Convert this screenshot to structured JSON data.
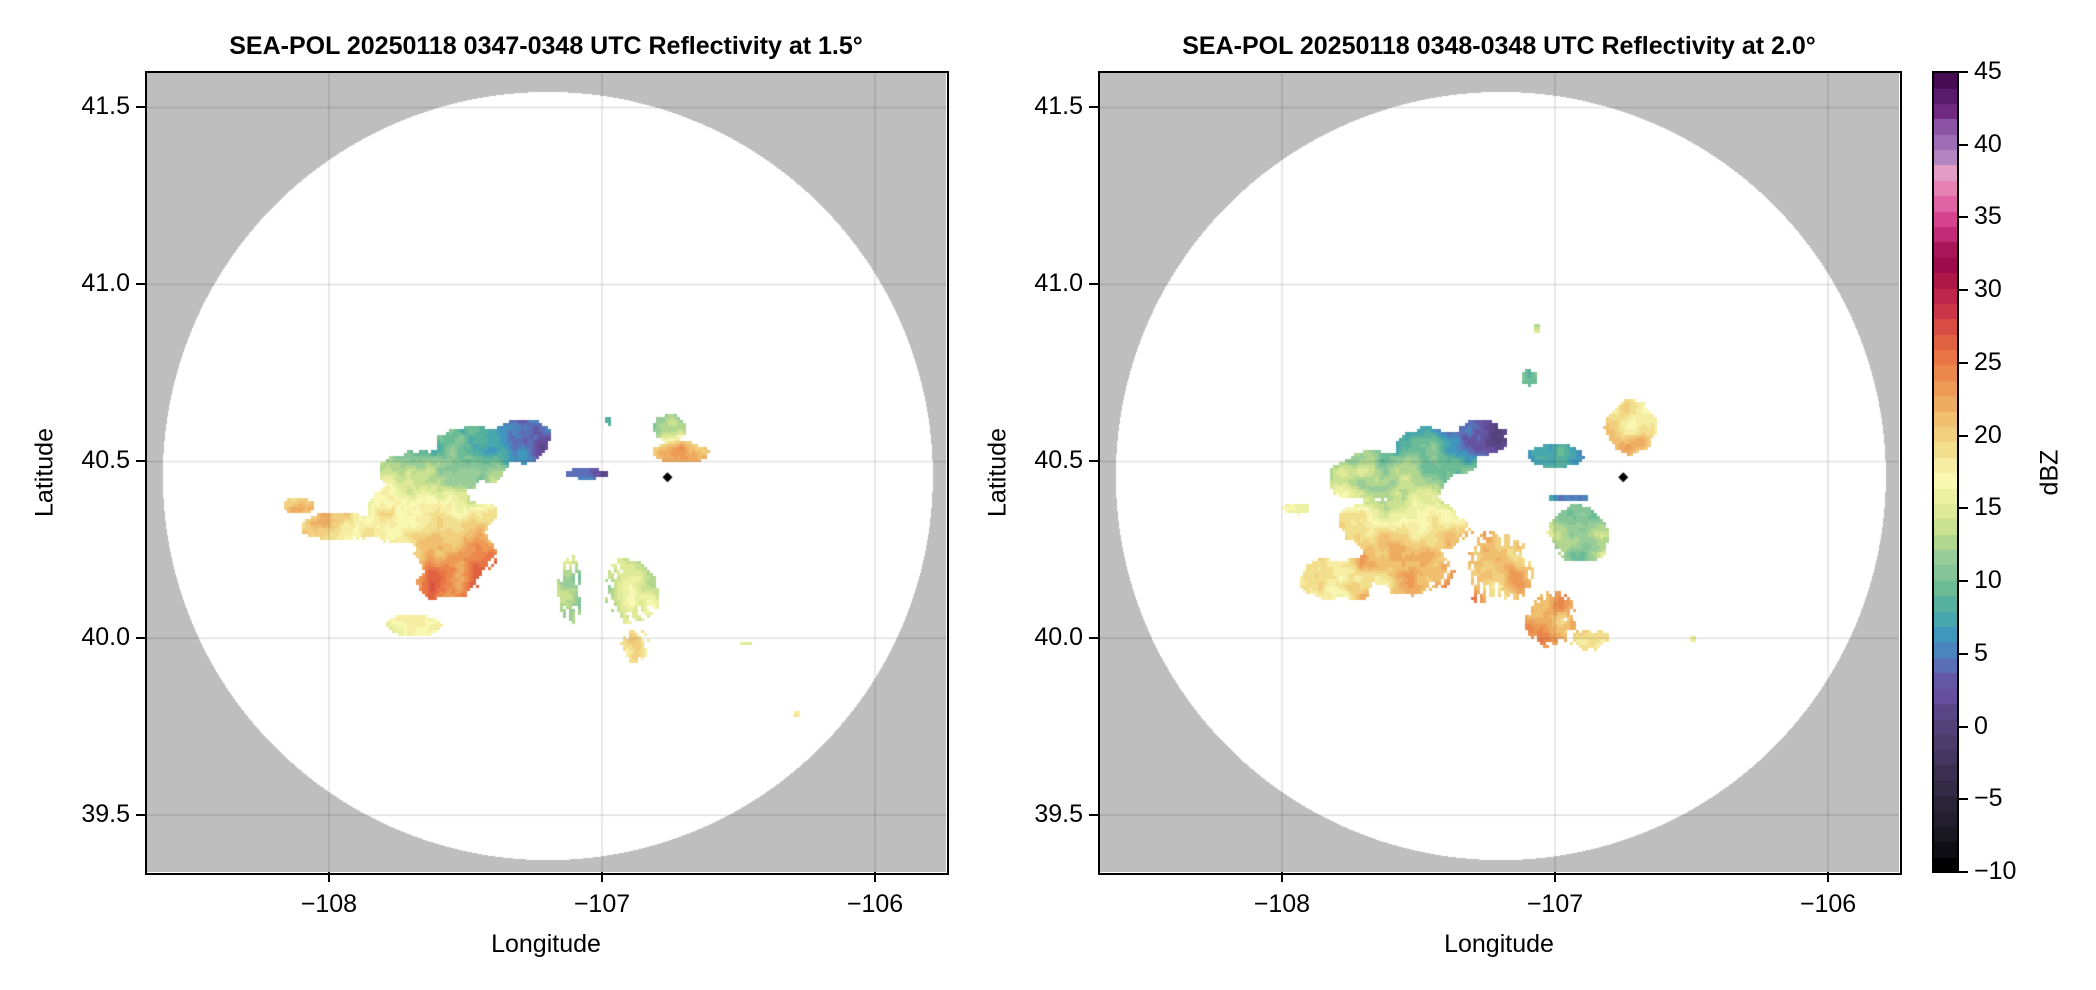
{
  "chart_data": [
    {
      "type": "heatmap",
      "title": "SEA-POL 20250118 0347-0348 UTC Reflectivity at 1.5°",
      "xlabel": "Longitude",
      "ylabel": "Latitude",
      "xlim": [
        -108.67,
        -105.74
      ],
      "ylim": [
        39.34,
        41.6
      ],
      "xticks": [
        -108,
        -107,
        -106
      ],
      "xtick_labels": [
        "−108",
        "−107",
        "−106"
      ],
      "yticks": [
        39.5,
        40.0,
        40.5,
        41.0,
        41.5
      ],
      "ytick_labels": [
        "39.5",
        "40.0",
        "40.5",
        "41.0",
        "41.5"
      ],
      "grid": true,
      "missing_color": "#bebebe",
      "coverage": {
        "center_lon": -107.2,
        "center_lat": 40.46,
        "radius_lon": 1.41,
        "radius_lat": 1.085
      },
      "marker": {
        "lon": -106.76,
        "lat": 40.455,
        "shape": "diamond",
        "color": "#000000"
      },
      "echoes": [
        {
          "lon": -107.3,
          "lat": 40.56,
          "rlon": 0.14,
          "rlat": 0.08,
          "dbz": 2
        },
        {
          "lon": -107.48,
          "lat": 40.53,
          "rlon": 0.2,
          "rlat": 0.09,
          "dbz": 8
        },
        {
          "lon": -107.6,
          "lat": 40.48,
          "rlon": 0.28,
          "rlat": 0.09,
          "dbz": 12
        },
        {
          "lon": -107.65,
          "lat": 40.35,
          "rlon": 0.32,
          "rlat": 0.12,
          "dbz": 17
        },
        {
          "lon": -107.55,
          "lat": 40.25,
          "rlon": 0.2,
          "rlat": 0.1,
          "dbz": 24
        },
        {
          "lon": -107.58,
          "lat": 40.16,
          "rlon": 0.15,
          "rlat": 0.06,
          "dbz": 25
        },
        {
          "lon": -107.95,
          "lat": 40.32,
          "rlon": 0.2,
          "rlat": 0.05,
          "dbz": 19
        },
        {
          "lon": -108.12,
          "lat": 40.38,
          "rlon": 0.08,
          "rlat": 0.03,
          "dbz": 21
        },
        {
          "lon": -107.7,
          "lat": 40.04,
          "rlon": 0.13,
          "rlat": 0.04,
          "dbz": 16
        },
        {
          "lon": -107.05,
          "lat": 40.47,
          "rlon": 0.12,
          "rlat": 0.02,
          "dbz": 4
        },
        {
          "lon": -106.72,
          "lat": 40.53,
          "rlon": 0.15,
          "rlat": 0.04,
          "dbz": 22
        },
        {
          "lon": -106.76,
          "lat": 40.6,
          "rlon": 0.08,
          "rlat": 0.05,
          "dbz": 12
        },
        {
          "lon": -106.98,
          "lat": 40.62,
          "rlon": 0.02,
          "rlat": 0.02,
          "dbz": 11
        },
        {
          "lon": -106.9,
          "lat": 40.14,
          "rlon": 0.14,
          "rlat": 0.12,
          "dbz": 14
        },
        {
          "lon": -106.88,
          "lat": 39.98,
          "rlon": 0.07,
          "rlat": 0.06,
          "dbz": 18
        },
        {
          "lon": -107.12,
          "lat": 40.14,
          "rlon": 0.06,
          "rlat": 0.12,
          "dbz": 12
        },
        {
          "lon": -106.48,
          "lat": 39.99,
          "rlon": 0.03,
          "rlat": 0.01,
          "dbz": 15
        },
        {
          "lon": -106.29,
          "lat": 39.79,
          "rlon": 0.02,
          "rlat": 0.015,
          "dbz": 21
        }
      ]
    },
    {
      "type": "heatmap",
      "title": "SEA-POL 20250118 0348-0348 UTC Reflectivity at 2.0°",
      "xlabel": "Longitude",
      "ylabel": "Latitude",
      "xlim": [
        -108.67,
        -105.74
      ],
      "ylim": [
        39.34,
        41.6
      ],
      "xticks": [
        -108,
        -107,
        -106
      ],
      "xtick_labels": [
        "−108",
        "−107",
        "−106"
      ],
      "yticks": [
        39.5,
        40.0,
        40.5,
        41.0,
        41.5
      ],
      "ytick_labels": [
        "39.5",
        "40.0",
        "40.5",
        "41.0",
        "41.5"
      ],
      "grid": true,
      "missing_color": "#bebebe",
      "coverage": {
        "center_lon": -107.2,
        "center_lat": 40.46,
        "radius_lon": 1.41,
        "radius_lat": 1.085
      },
      "marker": {
        "lon": -106.75,
        "lat": 40.455,
        "shape": "diamond",
        "color": "#000000"
      },
      "echoes": [
        {
          "lon": -107.27,
          "lat": 40.57,
          "rlon": 0.14,
          "rlat": 0.07,
          "dbz": 2
        },
        {
          "lon": -107.45,
          "lat": 40.53,
          "rlon": 0.22,
          "rlat": 0.1,
          "dbz": 8
        },
        {
          "lon": -107.6,
          "lat": 40.46,
          "rlon": 0.3,
          "rlat": 0.1,
          "dbz": 12
        },
        {
          "lon": -107.55,
          "lat": 40.33,
          "rlon": 0.3,
          "rlat": 0.12,
          "dbz": 18
        },
        {
          "lon": -107.55,
          "lat": 40.2,
          "rlon": 0.22,
          "rlat": 0.1,
          "dbz": 22
        },
        {
          "lon": -107.2,
          "lat": 40.2,
          "rlon": 0.17,
          "rlat": 0.14,
          "dbz": 22
        },
        {
          "lon": -107.02,
          "lat": 40.06,
          "rlon": 0.12,
          "rlat": 0.1,
          "dbz": 22
        },
        {
          "lon": -106.92,
          "lat": 40.3,
          "rlon": 0.14,
          "rlat": 0.12,
          "dbz": 12
        },
        {
          "lon": -106.88,
          "lat": 40.0,
          "rlon": 0.1,
          "rlat": 0.04,
          "dbz": 19
        },
        {
          "lon": -107.8,
          "lat": 40.17,
          "rlon": 0.18,
          "rlat": 0.08,
          "dbz": 18
        },
        {
          "lon": -107.95,
          "lat": 40.37,
          "rlon": 0.06,
          "rlat": 0.02,
          "dbz": 15
        },
        {
          "lon": -107.0,
          "lat": 40.52,
          "rlon": 0.14,
          "rlat": 0.04,
          "dbz": 6
        },
        {
          "lon": -106.95,
          "lat": 40.4,
          "rlon": 0.1,
          "rlat": 0.015,
          "dbz": 4
        },
        {
          "lon": -106.72,
          "lat": 40.6,
          "rlon": 0.12,
          "rlat": 0.1,
          "dbz": 18
        },
        {
          "lon": -106.72,
          "lat": 40.55,
          "rlon": 0.1,
          "rlat": 0.03,
          "dbz": 26
        },
        {
          "lon": -107.1,
          "lat": 40.74,
          "rlon": 0.04,
          "rlat": 0.03,
          "dbz": 10
        },
        {
          "lon": -107.07,
          "lat": 40.88,
          "rlon": 0.015,
          "rlat": 0.02,
          "dbz": 13
        },
        {
          "lon": -106.5,
          "lat": 40.0,
          "rlon": 0.02,
          "rlat": 0.01,
          "dbz": 15
        }
      ]
    }
  ],
  "colorbar": {
    "label": "dBZ",
    "min": -10,
    "max": 45,
    "ticks": [
      -10,
      -5,
      0,
      5,
      10,
      15,
      20,
      25,
      30,
      35,
      40,
      45
    ],
    "tick_labels": [
      "−10",
      "−5",
      "0",
      "5",
      "10",
      "15",
      "20",
      "25",
      "30",
      "35",
      "40",
      "45"
    ],
    "colors": [
      "#000000",
      "#0f0e14",
      "#19171f",
      "#221e2e",
      "#2a2439",
      "#332a45",
      "#3b2f51",
      "#433660",
      "#4b3c6c",
      "#53427a",
      "#5a4687",
      "#654f9d",
      "#6458a5",
      "#5a6fb7",
      "#4c85bd",
      "#4097bc",
      "#48a6ad",
      "#56b09e",
      "#6bbc96",
      "#84c497",
      "#98cc98",
      "#b1d690",
      "#c9e190",
      "#dfea97",
      "#ecf1a2",
      "#f8f8b3",
      "#f6eda2",
      "#f2df8d",
      "#f1cf7e",
      "#f0bf6f",
      "#eeac62",
      "#ed9a56",
      "#eb874c",
      "#e97546",
      "#e06241",
      "#d84c43",
      "#cb3548",
      "#be254a",
      "#ae1849",
      "#9c0b4a",
      "#a8165a",
      "#c32a77",
      "#d6438f",
      "#e063a3",
      "#e681b3",
      "#e39cc8",
      "#b285c1",
      "#9d6eb5",
      "#8c53a5",
      "#6f2a80",
      "#5a1a6b",
      "#480c54"
    ]
  }
}
